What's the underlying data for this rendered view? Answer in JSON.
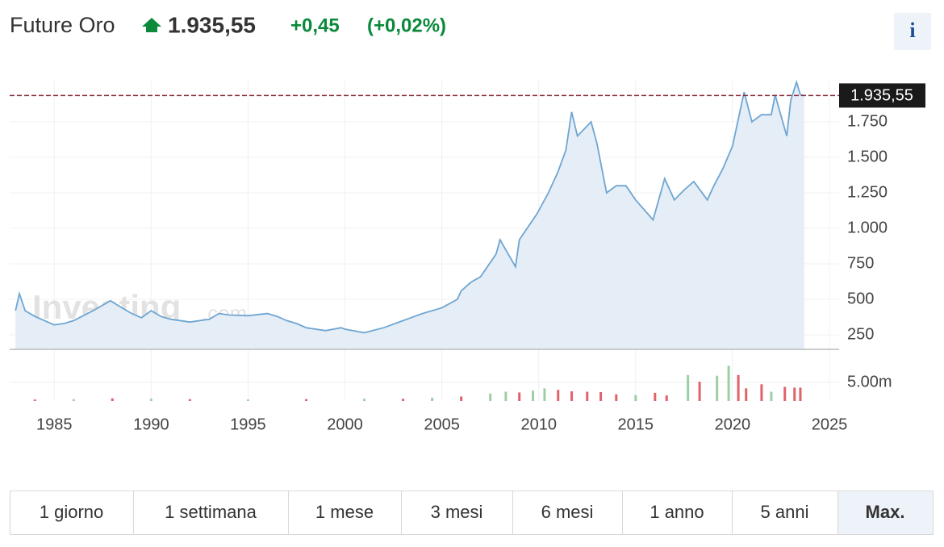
{
  "header": {
    "title": "Future Oro",
    "change": "+0,45",
    "change_pct": "(+0,02%)",
    "info": "i"
  },
  "watermark": {
    "brand": "Investing",
    "suffix": ".com"
  },
  "buttons": [
    "1 giorno",
    "1 settimana",
    "1 mese",
    "3 mesi",
    "6 mesi",
    "1 anno",
    "5 anni",
    "Max."
  ],
  "active_button": 7,
  "chart_data": {
    "type": "line",
    "x": [
      1983.0,
      1983.2,
      1983.5,
      1984,
      1985,
      1985.5,
      1986,
      1987,
      1987.9,
      1988.5,
      1989,
      1989.5,
      1990,
      1990.5,
      1991,
      1992,
      1993,
      1993.5,
      1994,
      1995,
      1996,
      1996.5,
      1997,
      1997.5,
      1998,
      1999,
      1999.8,
      2000,
      2001,
      2002,
      2003,
      2004,
      2005,
      2005.8,
      2006,
      2006.5,
      2007,
      2007.8,
      2008,
      2008.8,
      2009,
      2009.9,
      2010.5,
      2011,
      2011.4,
      2011.7,
      2012,
      2012.7,
      2013,
      2013.5,
      2014,
      2014.5,
      2015,
      2015.9,
      2016.5,
      2017,
      2017.5,
      2018,
      2018.7,
      2019,
      2019.5,
      2020,
      2020.6,
      2021,
      2021.5,
      2022,
      2022.2,
      2022.8,
      2023,
      2023.3,
      2023.5,
      2023.7
    ],
    "series": [
      {
        "name": "Future Oro",
        "color": "#6fa6d2",
        "fill": "#e5edf6",
        "values": [
          420,
          540,
          420,
          380,
          320,
          330,
          350,
          420,
          490,
          440,
          400,
          370,
          420,
          380,
          360,
          340,
          360,
          400,
          390,
          385,
          400,
          380,
          350,
          330,
          300,
          280,
          300,
          290,
          265,
          300,
          350,
          400,
          440,
          500,
          560,
          620,
          660,
          820,
          920,
          730,
          920,
          1100,
          1250,
          1400,
          1550,
          1820,
          1650,
          1750,
          1600,
          1250,
          1300,
          1300,
          1200,
          1060,
          1350,
          1200,
          1270,
          1330,
          1200,
          1290,
          1420,
          1580,
          1960,
          1750,
          1800,
          1800,
          1940,
          1650,
          1900,
          2030,
          1940,
          1935.55
        ]
      }
    ],
    "last_price": {
      "value": 1935.55,
      "label": "1.935,55"
    },
    "last_line_color": "#8b2b3a",
    "xlim": [
      1982.7,
      2025.5
    ],
    "xticks": [
      1985,
      1990,
      1995,
      2000,
      2005,
      2010,
      2015,
      2020,
      2025
    ],
    "ylim": [
      148,
      2040
    ],
    "yticks": [
      250,
      500,
      750,
      {
        "value": 1000,
        "label": "1.000"
      },
      {
        "value": 1250,
        "label": "1.250"
      },
      {
        "value": 1500,
        "label": "1.500"
      },
      {
        "value": 1750,
        "label": "1.750"
      }
    ],
    "grid": true,
    "volume": {
      "type": "bar",
      "x": [
        1984,
        1986,
        1988,
        1990,
        1992,
        1995,
        1998,
        2001,
        2003,
        2004.5,
        2006,
        2007.5,
        2008.3,
        2009,
        2009.7,
        2010.3,
        2011,
        2011.7,
        2012.5,
        2013.2,
        2014,
        2015,
        2016,
        2016.6,
        2017.7,
        2018.3,
        2019.2,
        2019.8,
        2020.3,
        2020.7,
        2021.5,
        2022,
        2022.7,
        2023.2,
        2023.5
      ],
      "values": [
        0.4,
        0.5,
        0.7,
        0.6,
        0.5,
        0.4,
        0.5,
        0.6,
        0.6,
        0.9,
        1.2,
        2.0,
        2.5,
        2.3,
        2.8,
        3.4,
        3.0,
        2.6,
        2.5,
        2.4,
        1.8,
        1.6,
        2.2,
        1.5,
        7.0,
        5.2,
        6.8,
        9.5,
        7.0,
        3.4,
        4.5,
        2.5,
        3.8,
        3.6,
        3.6
      ],
      "colors": [
        "#e0636a",
        "#9ccfa5",
        "#e0636a",
        "#9ccfa5",
        "#e0636a",
        "#9ccfa5",
        "#e0636a",
        "#9ccfa5",
        "#e0636a",
        "#9ccfa5",
        "#e0636a",
        "#9ccfa5",
        "#9ccfa5",
        "#e0636a",
        "#9ccfa5",
        "#9ccfa5",
        "#e0636a",
        "#e0636a",
        "#e0636a",
        "#e0636a",
        "#e0636a",
        "#9ccfa5",
        "#e0636a",
        "#e0636a",
        "#9ccfa5",
        "#e0636a",
        "#9ccfa5",
        "#9ccfa5",
        "#e0636a",
        "#e0636a",
        "#e0636a",
        "#9ccfa5",
        "#e0636a",
        "#e0636a",
        "#e0636a"
      ],
      "ylim": [
        0,
        12.4
      ],
      "yticks": [
        {
          "value": 5,
          "label": "5.00m"
        }
      ]
    }
  }
}
